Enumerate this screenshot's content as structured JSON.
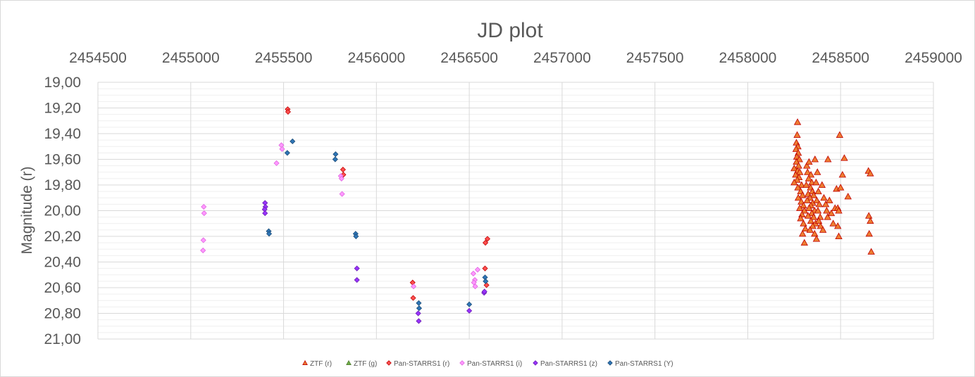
{
  "chart_data": {
    "type": "scatter",
    "title": "JD plot",
    "xlabel": "",
    "ylabel": "Magnitude (r)",
    "xlim": [
      2454500,
      2459000
    ],
    "ylim": [
      19.0,
      21.0
    ],
    "y_reversed": true,
    "x_axis_position": "top",
    "xticks": [
      "2454500",
      "2455000",
      "2455500",
      "2456000",
      "2456500",
      "2457000",
      "2457500",
      "2458000",
      "2458500",
      "2459000"
    ],
    "yticks": [
      "19,00",
      "19,20",
      "19,40",
      "19,60",
      "19,80",
      "20,00",
      "20,20",
      "20,40",
      "20,60",
      "20,80",
      "21,00"
    ],
    "grid": true,
    "legend_position": "bottom",
    "series": [
      {
        "name": "ZTF (r)",
        "marker": "triangle",
        "color": "#ed7d31",
        "edge": "#c00000",
        "points": [
          [
            2458268,
            19.31
          ],
          [
            2458266,
            19.41
          ],
          [
            2458262,
            19.47
          ],
          [
            2458270,
            19.5
          ],
          [
            2458260,
            19.52
          ],
          [
            2458272,
            19.55
          ],
          [
            2458264,
            19.58
          ],
          [
            2458278,
            19.6
          ],
          [
            2458262,
            19.62
          ],
          [
            2458274,
            19.65
          ],
          [
            2458250,
            19.67
          ],
          [
            2458268,
            19.69
          ],
          [
            2458280,
            19.7
          ],
          [
            2458258,
            19.72
          ],
          [
            2458276,
            19.74
          ],
          [
            2458266,
            19.76
          ],
          [
            2458250,
            19.78
          ],
          [
            2458290,
            19.8
          ],
          [
            2458270,
            19.82
          ],
          [
            2458285,
            19.85
          ],
          [
            2458295,
            19.88
          ],
          [
            2458272,
            19.9
          ],
          [
            2458288,
            19.93
          ],
          [
            2458300,
            19.96
          ],
          [
            2458280,
            19.98
          ],
          [
            2458305,
            20.0
          ],
          [
            2458292,
            20.03
          ],
          [
            2458285,
            20.06
          ],
          [
            2458300,
            20.1
          ],
          [
            2458310,
            20.14
          ],
          [
            2458295,
            20.18
          ],
          [
            2458305,
            20.25
          ],
          [
            2458318,
            19.65
          ],
          [
            2458330,
            19.62
          ],
          [
            2458322,
            19.7
          ],
          [
            2458340,
            19.72
          ],
          [
            2458328,
            19.75
          ],
          [
            2458345,
            19.78
          ],
          [
            2458315,
            19.8
          ],
          [
            2458338,
            19.82
          ],
          [
            2458348,
            19.85
          ],
          [
            2458325,
            19.87
          ],
          [
            2458355,
            19.88
          ],
          [
            2458335,
            19.9
          ],
          [
            2458320,
            19.92
          ],
          [
            2458350,
            19.94
          ],
          [
            2458340,
            19.96
          ],
          [
            2458330,
            19.98
          ],
          [
            2458360,
            20.0
          ],
          [
            2458345,
            20.02
          ],
          [
            2458325,
            20.04
          ],
          [
            2458355,
            20.05
          ],
          [
            2458340,
            20.08
          ],
          [
            2458365,
            20.1
          ],
          [
            2458350,
            20.12
          ],
          [
            2458335,
            20.15
          ],
          [
            2458360,
            20.18
          ],
          [
            2458370,
            20.22
          ],
          [
            2458362,
            19.6
          ],
          [
            2458375,
            19.7
          ],
          [
            2458368,
            19.78
          ],
          [
            2458380,
            19.85
          ],
          [
            2458372,
            19.92
          ],
          [
            2458385,
            19.95
          ],
          [
            2458378,
            20.0
          ],
          [
            2458390,
            20.05
          ],
          [
            2458382,
            20.08
          ],
          [
            2458392,
            20.12
          ],
          [
            2458400,
            19.8
          ],
          [
            2458410,
            19.9
          ],
          [
            2458420,
            19.95
          ],
          [
            2458425,
            20.0
          ],
          [
            2458430,
            20.05
          ],
          [
            2458405,
            20.15
          ],
          [
            2458432,
            19.6
          ],
          [
            2458440,
            19.92
          ],
          [
            2458450,
            20.02
          ],
          [
            2458460,
            20.1
          ],
          [
            2458470,
            19.98
          ],
          [
            2458478,
            19.83
          ],
          [
            2458485,
            19.98
          ],
          [
            2458490,
            20.0
          ],
          [
            2458485,
            20.12
          ],
          [
            2458490,
            20.2
          ],
          [
            2458495,
            19.41
          ],
          [
            2458500,
            19.82
          ],
          [
            2458510,
            19.72
          ],
          [
            2458520,
            19.59
          ],
          [
            2458540,
            19.89
          ],
          [
            2458650,
            19.69
          ],
          [
            2458660,
            19.71
          ],
          [
            2458652,
            20.04
          ],
          [
            2458660,
            20.08
          ],
          [
            2458654,
            20.18
          ],
          [
            2458665,
            20.32
          ]
        ]
      },
      {
        "name": "ZTF (g)",
        "marker": "triangle",
        "color": "#70ad47",
        "edge": "#507e32",
        "points": []
      },
      {
        "name": "Pan-STARRS1 (r)",
        "marker": "diamond",
        "color": "#ff5050",
        "edge": "#c00000",
        "points": [
          [
            2455522,
            19.21
          ],
          [
            2455524,
            19.23
          ],
          [
            2455820,
            19.68
          ],
          [
            2455822,
            19.72
          ],
          [
            2456195,
            20.56
          ],
          [
            2456198,
            20.68
          ],
          [
            2456585,
            20.45
          ],
          [
            2456587,
            20.25
          ],
          [
            2456598,
            20.22
          ],
          [
            2456593,
            20.58
          ]
        ]
      },
      {
        "name": "Pan-STARRS1 (i)",
        "marker": "diamond",
        "color": "#ff99ff",
        "edge": "#e066e0",
        "points": [
          [
            2455070,
            19.97
          ],
          [
            2455072,
            20.02
          ],
          [
            2455068,
            20.23
          ],
          [
            2455066,
            20.31
          ],
          [
            2455462,
            19.63
          ],
          [
            2455488,
            19.49
          ],
          [
            2455492,
            19.52
          ],
          [
            2455808,
            19.73
          ],
          [
            2455812,
            19.75
          ],
          [
            2455815,
            19.87
          ],
          [
            2456200,
            20.59
          ],
          [
            2456522,
            20.49
          ],
          [
            2456530,
            20.54
          ],
          [
            2456525,
            20.56
          ],
          [
            2456532,
            20.59
          ],
          [
            2456545,
            20.46
          ]
        ]
      },
      {
        "name": "Pan-STARRS1 (z)",
        "marker": "diamond",
        "color": "#9933ff",
        "edge": "#6b1fb3",
        "points": [
          [
            2455400,
            19.94
          ],
          [
            2455402,
            19.97
          ],
          [
            2455398,
            19.99
          ],
          [
            2455400,
            20.02
          ],
          [
            2455895,
            20.45
          ],
          [
            2455895,
            20.54
          ],
          [
            2456225,
            20.8
          ],
          [
            2456228,
            20.86
          ],
          [
            2456500,
            20.78
          ],
          [
            2456580,
            20.64
          ],
          [
            2456582,
            20.63
          ]
        ]
      },
      {
        "name": "Pan-STARRS1 (Y)",
        "marker": "diamond",
        "color": "#2e75b6",
        "edge": "#1f4e79",
        "points": [
          [
            2455548,
            19.46
          ],
          [
            2455520,
            19.55
          ],
          [
            2455780,
            19.56
          ],
          [
            2455778,
            19.6
          ],
          [
            2455420,
            20.16
          ],
          [
            2455422,
            20.18
          ],
          [
            2455888,
            20.18
          ],
          [
            2455890,
            20.2
          ],
          [
            2456228,
            20.72
          ],
          [
            2456230,
            20.76
          ],
          [
            2456500,
            20.73
          ],
          [
            2456585,
            20.52
          ],
          [
            2456588,
            20.55
          ]
        ]
      }
    ]
  }
}
